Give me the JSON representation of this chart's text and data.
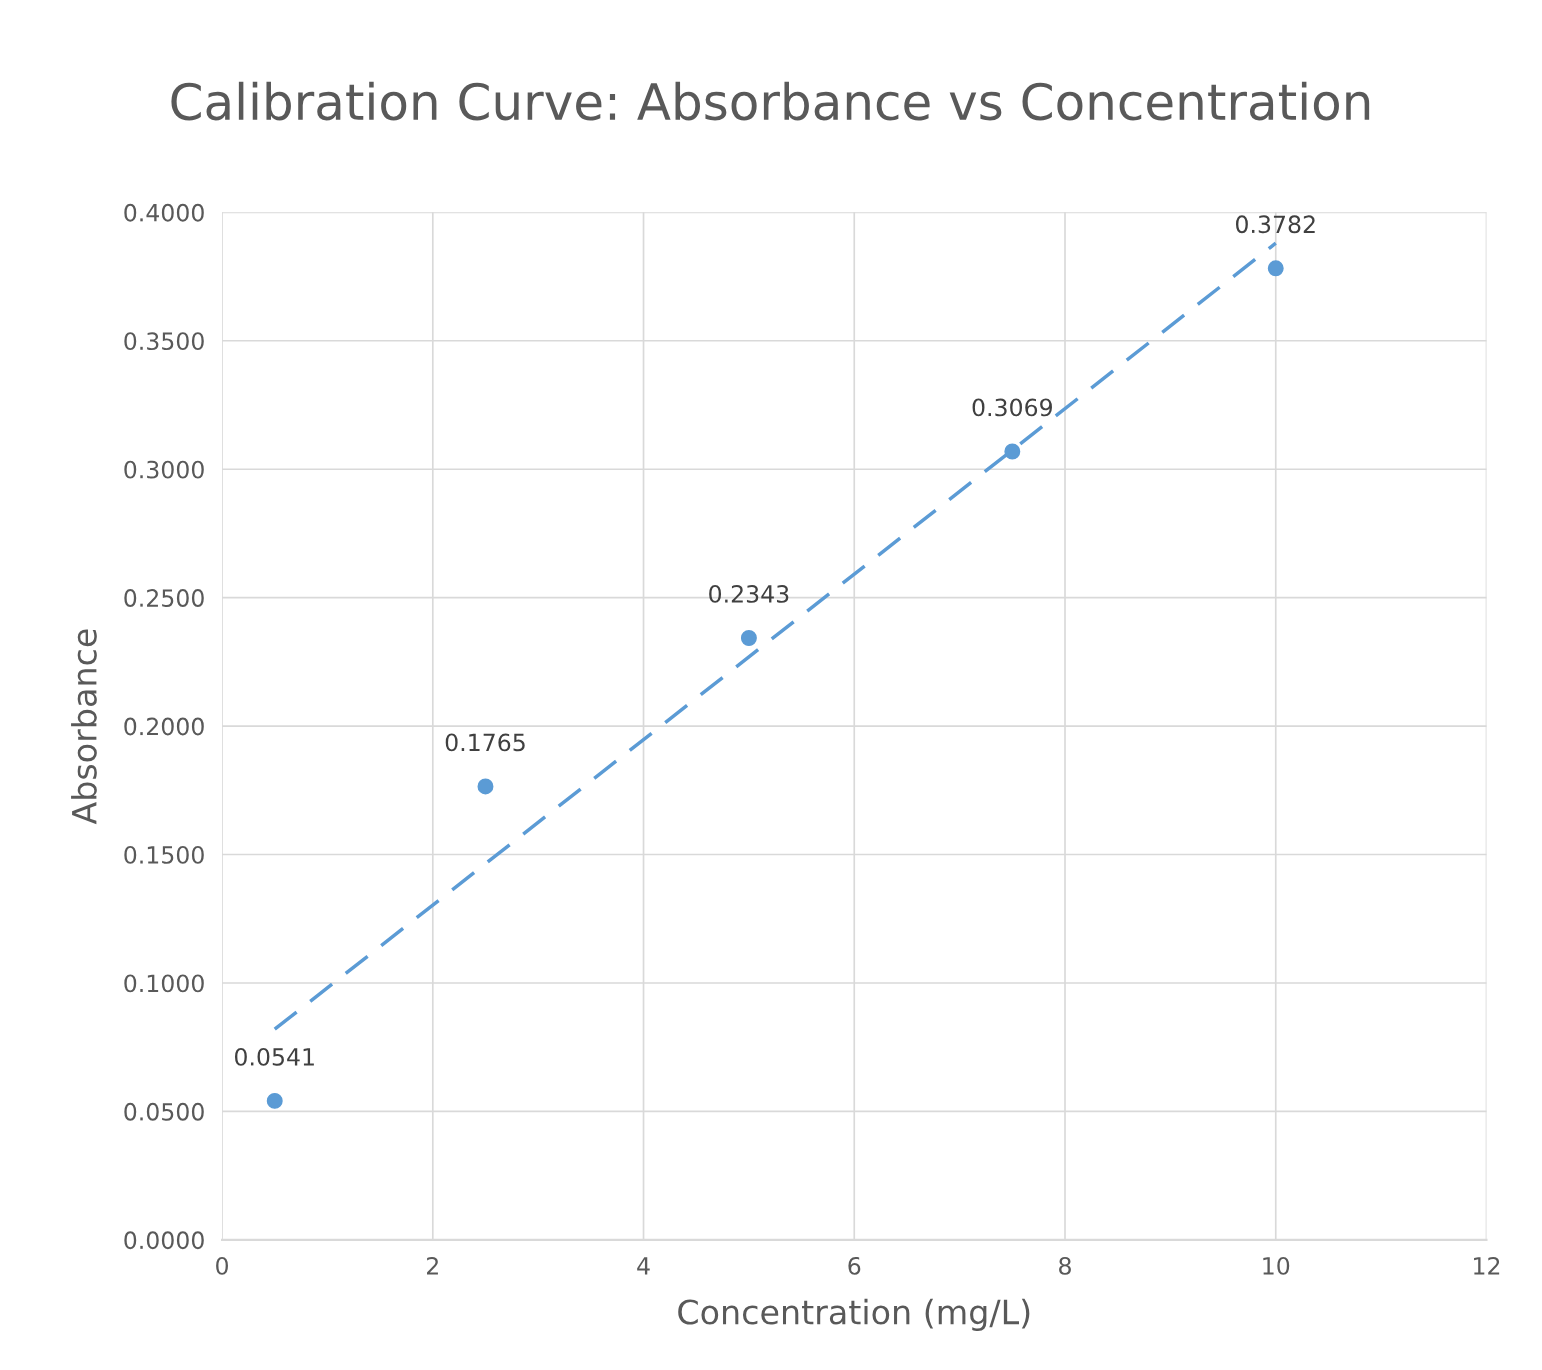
{
  "chart_data": {
    "type": "scatter",
    "title": "Calibration Curve: Absorbance vs Concentration",
    "xlabel": "Concentration (mg/L)",
    "ylabel": "Absorbance",
    "x": [
      0.5,
      2.5,
      5,
      7.5,
      10
    ],
    "series": [
      {
        "color": "#5b9bd5",
        "values": [
          0.0541,
          0.1765,
          0.2343,
          0.3069,
          0.3782
        ],
        "marker": "circle",
        "data_labels": true
      },
      {
        "type": "line",
        "color": "#5b9bd5",
        "x": [
          0.5,
          10
        ],
        "values": [
          0.082,
          0.388
        ],
        "marker": "none",
        "line_style": "dashed"
      }
    ],
    "xlim": [
      0,
      12
    ],
    "xticks": [
      0,
      2,
      4,
      6,
      8,
      10,
      12
    ],
    "ylim": [
      0,
      0.4
    ],
    "yticks": [
      {
        "value": 0,
        "label": "0.0000"
      },
      {
        "value": 0.05,
        "label": "0.0500"
      },
      {
        "value": 0.1,
        "label": "0.1000"
      },
      {
        "value": 0.15,
        "label": "0.1500"
      },
      {
        "value": 0.2,
        "label": "0.2000"
      },
      {
        "value": 0.25,
        "label": "0.2500"
      },
      {
        "value": 0.3,
        "label": "0.3000"
      },
      {
        "value": 0.35,
        "label": "0.3500"
      },
      {
        "value": 0.4,
        "label": "0.4000"
      }
    ],
    "grid": true,
    "legend": false
  }
}
